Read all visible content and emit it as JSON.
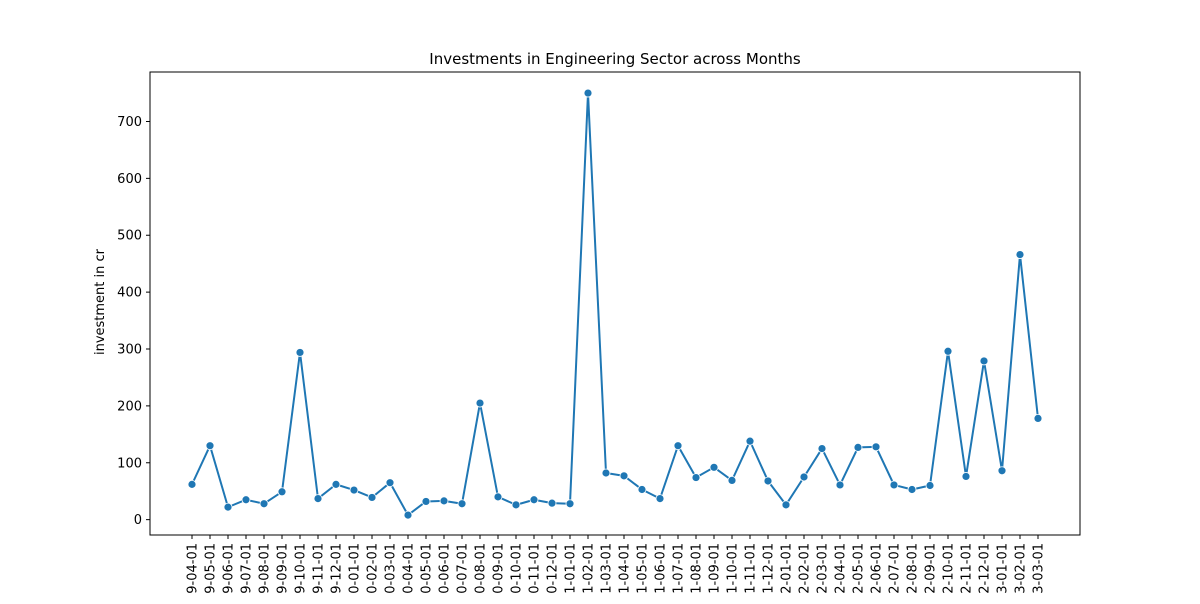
{
  "chart_data": {
    "type": "line",
    "title": "Investments in Engineering Sector across Months",
    "xlabel": "",
    "ylabel": "investment in cr",
    "ylim": [
      -27,
      787
    ],
    "yticks": [
      0,
      100,
      200,
      300,
      400,
      500,
      600,
      700
    ],
    "grid": false,
    "marker": "circle",
    "color": "#1f77b4",
    "categories": [
      "9-04-01",
      "9-05-01",
      "9-06-01",
      "9-07-01",
      "9-08-01",
      "9-09-01",
      "9-10-01",
      "9-11-01",
      "9-12-01",
      "0-01-01",
      "0-02-01",
      "0-03-01",
      "0-04-01",
      "0-05-01",
      "0-06-01",
      "0-07-01",
      "0-08-01",
      "0-09-01",
      "0-10-01",
      "0-11-01",
      "0-12-01",
      "1-01-01",
      "1-02-01",
      "1-03-01",
      "1-04-01",
      "1-05-01",
      "1-06-01",
      "1-07-01",
      "1-08-01",
      "1-09-01",
      "1-10-01",
      "1-11-01",
      "1-12-01",
      "2-01-01",
      "2-02-01",
      "2-03-01",
      "2-04-01",
      "2-05-01",
      "2-06-01",
      "2-07-01",
      "2-08-01",
      "2-09-01",
      "2-10-01",
      "2-11-01",
      "2-12-01",
      "3-01-01",
      "3-02-01",
      "3-03-01"
    ],
    "values": [
      62,
      130,
      22,
      35,
      28,
      49,
      294,
      37,
      62,
      52,
      39,
      65,
      8,
      32,
      33,
      28,
      205,
      40,
      26,
      35,
      29,
      28,
      750,
      82,
      77,
      53,
      37,
      130,
      74,
      92,
      69,
      138,
      68,
      26,
      75,
      125,
      61,
      127,
      128,
      61,
      53,
      60,
      296,
      76,
      279,
      86,
      466,
      178
    ]
  }
}
